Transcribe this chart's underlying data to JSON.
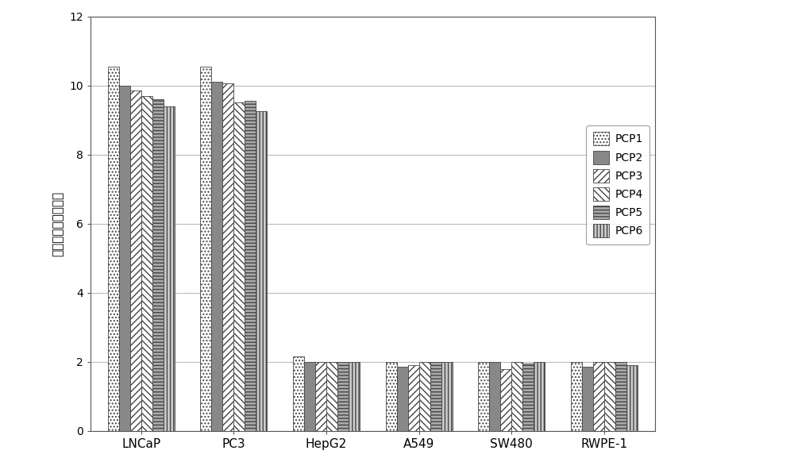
{
  "categories": [
    "LNCaP",
    "PC3",
    "HepG2",
    "A549",
    "SW480",
    "RWPE-1"
  ],
  "series": {
    "PCP1": [
      10.55,
      10.55,
      2.15,
      2.0,
      2.0,
      2.0
    ],
    "PCP2": [
      10.0,
      10.1,
      2.0,
      1.85,
      2.0,
      1.85
    ],
    "PCP3": [
      9.85,
      10.05,
      2.0,
      1.9,
      1.8,
      2.0
    ],
    "PCP4": [
      9.7,
      9.5,
      2.0,
      2.0,
      2.0,
      2.0
    ],
    "PCP5": [
      9.6,
      9.55,
      2.0,
      2.0,
      1.95,
      2.0
    ],
    "PCP6": [
      9.4,
      9.25,
      2.0,
      2.0,
      2.0,
      1.9
    ]
  },
  "ylabel": "啤菌体相对结合能力",
  "ylim": [
    0,
    12
  ],
  "yticks": [
    0,
    2,
    4,
    6,
    8,
    10,
    12
  ],
  "background_color": "#ffffff",
  "grid_color": "#bbbbbb",
  "bar_width": 0.12,
  "hatch_styles": [
    "....",
    "",
    "////",
    "\\\\\\\\",
    "----",
    "||||"
  ],
  "bar_colors": [
    "white",
    "#888888",
    "white",
    "white",
    "#aaaaaa",
    "#cccccc"
  ],
  "bar_facecolors": [
    "white",
    "#888888",
    "white",
    "white",
    "#aaaaaa",
    "#cccccc"
  ],
  "edge_colors": [
    "#444444",
    "#444444",
    "#444444",
    "#444444",
    "#444444",
    "#444444"
  ],
  "legend_labels": [
    "PCP1",
    "PCP2",
    "PCP3",
    "PCP4",
    "PCP5",
    "PCP6"
  ],
  "legend_hatch": [
    "....",
    "",
    "////",
    "\\\\\\\\",
    "----",
    "||||"
  ],
  "legend_colors": [
    "white",
    "#888888",
    "white",
    "white",
    "#aaaaaa",
    "#cccccc"
  ]
}
